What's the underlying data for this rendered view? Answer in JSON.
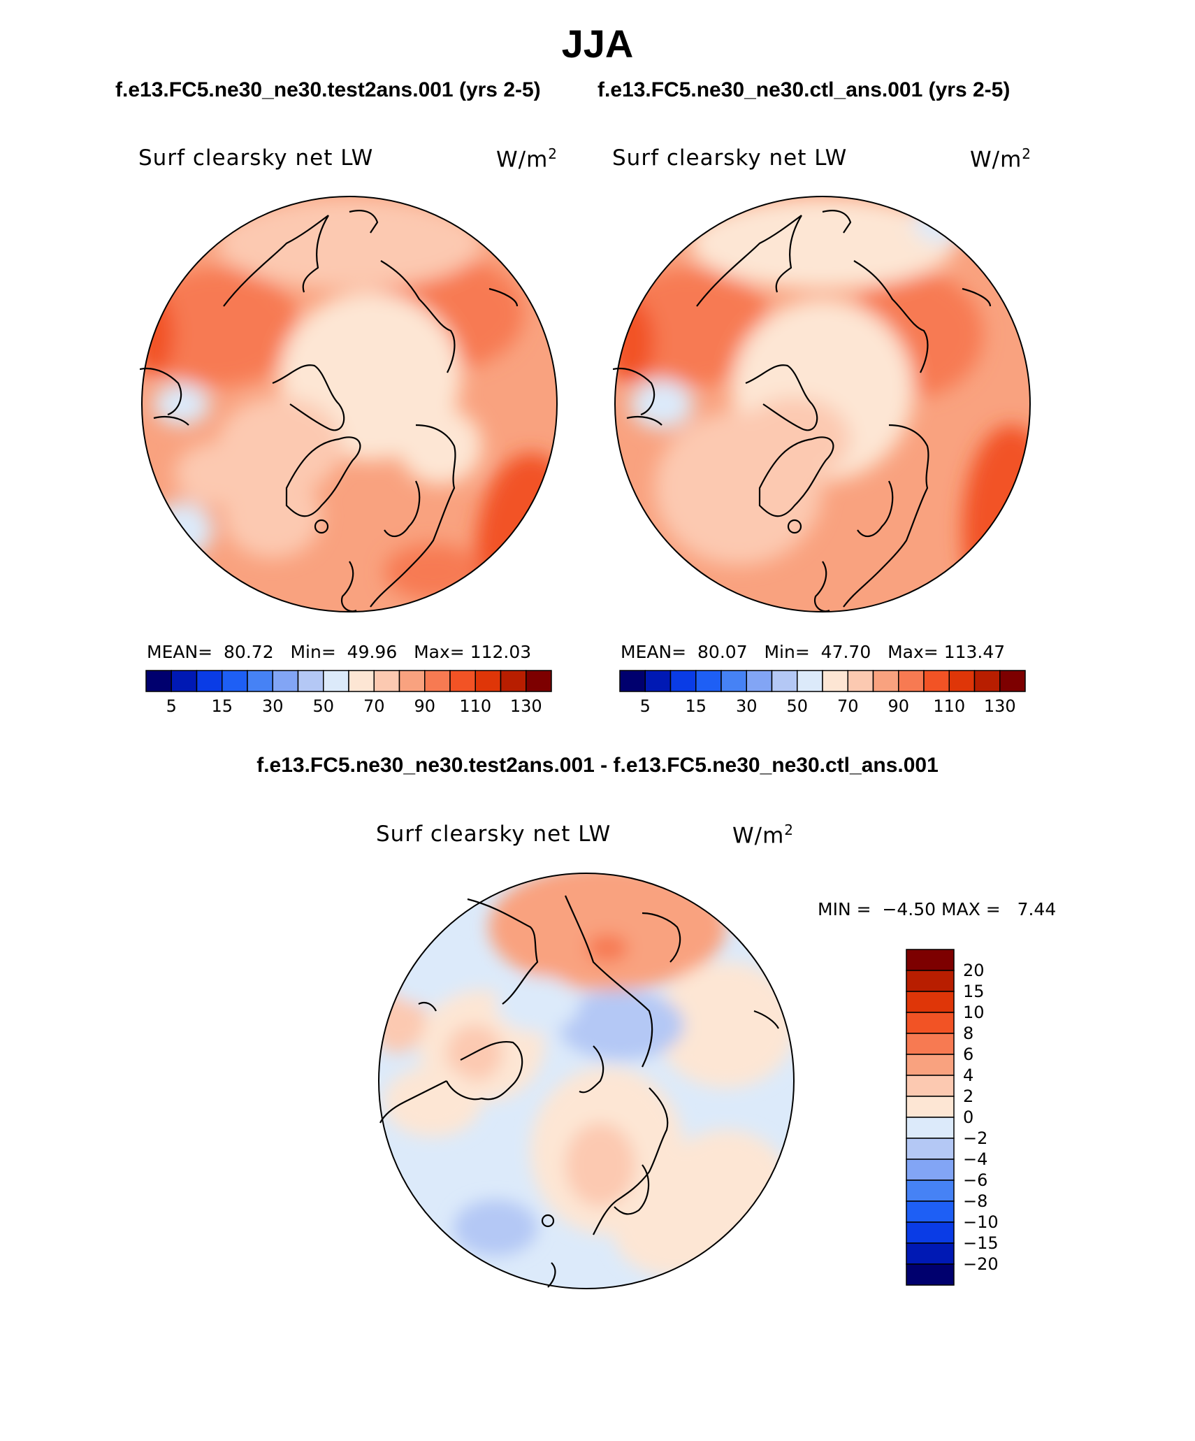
{
  "header": {
    "title": "JJA",
    "left_case": "f.e13.FC5.ne30_ne30.test2ans.001 (yrs 2-5)",
    "right_case": "f.e13.FC5.ne30_ne30.ctl_ans.001 (yrs 2-5)",
    "diff_title": "f.e13.FC5.ne30_ne30.test2ans.001 - f.e13.FC5.ne30_ne30.ctl_ans.001"
  },
  "panels": {
    "test": {
      "variable": "Surf clearsky net LW",
      "units_base": "W/m",
      "units_exp": "2",
      "mean_label": "MEAN=",
      "mean": "80.72",
      "min_label": "Min=",
      "min": "49.96",
      "max_label": "Max=",
      "max": "112.03"
    },
    "ctl": {
      "variable": "Surf clearsky net LW",
      "units_base": "W/m",
      "units_exp": "2",
      "mean_label": "MEAN=",
      "mean": "80.07",
      "min_label": "Min=",
      "min": "47.70",
      "max_label": "Max=",
      "max": "113.47"
    },
    "diff": {
      "variable": "Surf clearsky net LW",
      "units_base": "W/m",
      "units_exp": "2",
      "min_label": "MIN =",
      "min": "−4.50",
      "max_label": "MAX =",
      "max": "7.44"
    }
  },
  "colors": {
    "abs_scale": [
      "#00006e",
      "#0019b4",
      "#0a3ce6",
      "#1e5ff5",
      "#4682f5",
      "#82a5f5",
      "#b4c8f5",
      "#dceafa",
      "#fde6d4",
      "#fcc9b1",
      "#f9a27f",
      "#f77a52",
      "#f25325",
      "#df3608",
      "#b81e00",
      "#7d0000"
    ],
    "diff_scale": [
      "#00006e",
      "#0019b4",
      "#0a3ce6",
      "#1e5ff5",
      "#4682f5",
      "#82a5f5",
      "#b4c8f5",
      "#dceafa",
      "#fde6d4",
      "#fcc9b1",
      "#f9a27f",
      "#f77a52",
      "#f25325",
      "#df3608",
      "#b81e00",
      "#7d0000"
    ]
  },
  "chart_data": [
    {
      "type": "heatmap",
      "projection": "north-polar-stereographic",
      "title": "Surf clearsky net LW",
      "units": "W/m^2",
      "case": "f.e13.FC5.ne30_ne30.test2ans.001 (yrs 2-5)",
      "mean": 80.72,
      "min": 49.96,
      "max": 112.03,
      "colorbar_levels": [
        5,
        15,
        30,
        50,
        70,
        90,
        110,
        130
      ],
      "colorbar_tick_labels": [
        "5",
        "15",
        "30",
        "50",
        "70",
        "90",
        "110",
        "130"
      ]
    },
    {
      "type": "heatmap",
      "projection": "north-polar-stereographic",
      "title": "Surf clearsky net LW",
      "units": "W/m^2",
      "case": "f.e13.FC5.ne30_ne30.ctl_ans.001 (yrs 2-5)",
      "mean": 80.07,
      "min": 47.7,
      "max": 113.47,
      "colorbar_levels": [
        5,
        15,
        30,
        50,
        70,
        90,
        110,
        130
      ],
      "colorbar_tick_labels": [
        "5",
        "15",
        "30",
        "50",
        "70",
        "90",
        "110",
        "130"
      ]
    },
    {
      "type": "heatmap",
      "projection": "north-polar-stereographic",
      "title": "Surf clearsky net LW",
      "units": "W/m^2",
      "case": "test2ans.001 - ctl_ans.001",
      "min": -4.5,
      "max": 7.44,
      "colorbar_levels": [
        20,
        15,
        10,
        8,
        6,
        4,
        2,
        0,
        -2,
        -4,
        -6,
        -8,
        -10,
        -15,
        -20
      ],
      "colorbar_tick_labels": [
        "20",
        "15",
        "10",
        "8",
        "6",
        "4",
        "2",
        "0",
        "−2",
        "−4",
        "−6",
        "−8",
        "−10",
        "−15",
        "−20"
      ]
    }
  ]
}
